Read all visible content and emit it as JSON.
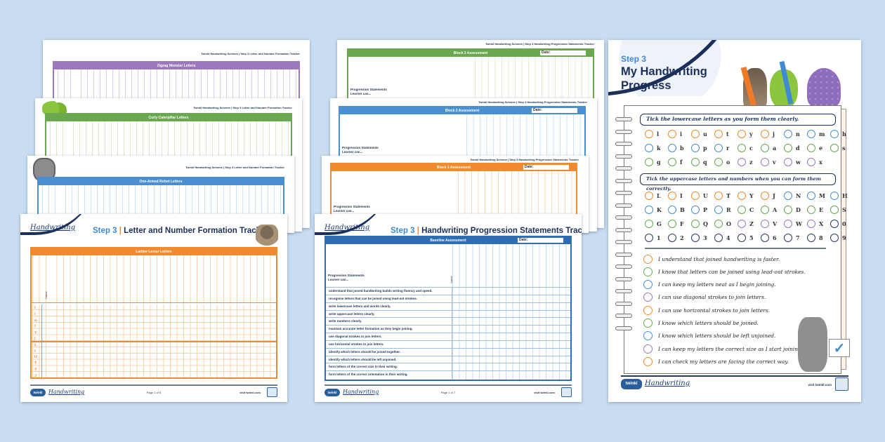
{
  "background_color": "#c9ddf2",
  "brand_colors": {
    "navy": "#1b2f5a",
    "blue": "#3f8ad0",
    "orange": "#ef8a2e",
    "green": "#6aa84f",
    "purple": "#9b78c0",
    "dark": "#2b3a5e"
  },
  "left_stack": {
    "running_header": "Twinkl Handwriting Scheme | Step 3 Letter and Number Formation Tracker",
    "sheets": [
      {
        "table_title": "Zigzag Monster Letters",
        "color": "#9b78c0"
      },
      {
        "table_title": "Curly Caterpillar Letters",
        "color": "#6aa84f"
      },
      {
        "table_title": "One-Armed Robot Letters",
        "color": "#4a8fd0"
      }
    ],
    "front": {
      "logo": "Handwriting",
      "title_step": "Step 3",
      "title_sep": "|",
      "title_text": "Letter and Number Formation Tracker",
      "table_title": "Ladder Lemur Letters",
      "name_label": "Name",
      "row_labels": [
        "l",
        "i",
        "u",
        "t",
        "y",
        "j",
        "L",
        "I",
        "U",
        "T",
        "Y",
        "J"
      ],
      "footer": {
        "brand": "twinkl",
        "product": "Handwriting",
        "page": "Page 1 of 5",
        "site": "visit twinkl.com"
      }
    }
  },
  "middle_stack": {
    "running_header": "Twinkl Handwriting Scheme | Step 3 Handwriting Progression Statements Tracker",
    "sheets": [
      {
        "table_title": "Block 3 Assessment",
        "date_label": "Date:",
        "color": "#6aa84f"
      },
      {
        "table_title": "Block 2 Assessment",
        "date_label": "Date:",
        "color": "#4a8fd0"
      },
      {
        "table_title": "Block 1 Assessment",
        "date_label": "Date:",
        "color": "#ef8a2e"
      }
    ],
    "statements_header": "Progression Statements",
    "learner_can": "Learner can...",
    "name_label": "Name",
    "front": {
      "logo": "Handwriting",
      "title_step": "Step 3",
      "title_sep": "|",
      "title_text": "Handwriting Progression Statements Tracker",
      "table_title": "Baseline Assessment",
      "date_label": "Date:",
      "rows": [
        "understand that joined handwriting builds writing fluency and speed.",
        "recognise letters that can be joined using lead-out strokes.",
        "write lowercase letters and words clearly.",
        "write uppercase letters clearly.",
        "write numbers clearly.",
        "maintain accurate letter formation as they begin joining.",
        "use diagonal strokes to join letters.",
        "use horizontal strokes to join letters.",
        "identify which letters should be joined together.",
        "identify which letters should be left unjoined.",
        "form letters of the correct size in their writing.",
        "form letters of the correct orientation in their writing."
      ],
      "footer": {
        "brand": "twinkl",
        "product": "Handwriting",
        "page": "Page 1 of 7",
        "site": "visit twinkl.com"
      }
    }
  },
  "right_sheet": {
    "step": "Step 3",
    "title_line1": "My Handwriting",
    "title_line2": "Progress",
    "lowercase_prompt": "Tick the lowercase letters as you form them clearly.",
    "lowercase_rows": [
      [
        {
          "ch": "l",
          "color": "#ef8a2e"
        },
        {
          "ch": "i",
          "color": "#ef8a2e"
        },
        {
          "ch": "u",
          "color": "#ef8a2e"
        },
        {
          "ch": "t",
          "color": "#ef8a2e"
        },
        {
          "ch": "y",
          "color": "#ef8a2e"
        },
        {
          "ch": "j",
          "color": "#ef8a2e"
        },
        {
          "ch": "n",
          "color": "#4a8fd0"
        },
        {
          "ch": "m",
          "color": "#4a8fd0"
        },
        {
          "ch": "h",
          "color": "#4a8fd0"
        }
      ],
      [
        {
          "ch": "k",
          "color": "#4a8fd0"
        },
        {
          "ch": "b",
          "color": "#4a8fd0"
        },
        {
          "ch": "p",
          "color": "#4a8fd0"
        },
        {
          "ch": "r",
          "color": "#4a8fd0"
        },
        {
          "ch": "c",
          "color": "#6aa84f"
        },
        {
          "ch": "a",
          "color": "#6aa84f"
        },
        {
          "ch": "d",
          "color": "#6aa84f"
        },
        {
          "ch": "e",
          "color": "#6aa84f"
        },
        {
          "ch": "s",
          "color": "#6aa84f"
        }
      ],
      [
        {
          "ch": "g",
          "color": "#6aa84f"
        },
        {
          "ch": "f",
          "color": "#6aa84f"
        },
        {
          "ch": "q",
          "color": "#6aa84f"
        },
        {
          "ch": "o",
          "color": "#6aa84f"
        },
        {
          "ch": "z",
          "color": "#9b78c0"
        },
        {
          "ch": "v",
          "color": "#9b78c0"
        },
        {
          "ch": "w",
          "color": "#9b78c0"
        },
        {
          "ch": "x",
          "color": "#9b78c0"
        }
      ]
    ],
    "uppercase_prompt": "Tick the uppercase letters and numbers when you can form them correctly.",
    "uppercase_rows": [
      [
        {
          "ch": "L",
          "color": "#ef8a2e"
        },
        {
          "ch": "I",
          "color": "#ef8a2e"
        },
        {
          "ch": "U",
          "color": "#ef8a2e"
        },
        {
          "ch": "T",
          "color": "#ef8a2e"
        },
        {
          "ch": "Y",
          "color": "#ef8a2e"
        },
        {
          "ch": "J",
          "color": "#ef8a2e"
        },
        {
          "ch": "N",
          "color": "#4a8fd0"
        },
        {
          "ch": "M",
          "color": "#4a8fd0"
        },
        {
          "ch": "H",
          "color": "#4a8fd0"
        }
      ],
      [
        {
          "ch": "K",
          "color": "#4a8fd0"
        },
        {
          "ch": "B",
          "color": "#4a8fd0"
        },
        {
          "ch": "P",
          "color": "#4a8fd0"
        },
        {
          "ch": "R",
          "color": "#4a8fd0"
        },
        {
          "ch": "C",
          "color": "#6aa84f"
        },
        {
          "ch": "A",
          "color": "#6aa84f"
        },
        {
          "ch": "D",
          "color": "#6aa84f"
        },
        {
          "ch": "E",
          "color": "#6aa84f"
        },
        {
          "ch": "S",
          "color": "#6aa84f"
        }
      ],
      [
        {
          "ch": "G",
          "color": "#6aa84f"
        },
        {
          "ch": "F",
          "color": "#6aa84f"
        },
        {
          "ch": "Q",
          "color": "#6aa84f"
        },
        {
          "ch": "O",
          "color": "#6aa84f"
        },
        {
          "ch": "Z",
          "color": "#9b78c0"
        },
        {
          "ch": "V",
          "color": "#9b78c0"
        },
        {
          "ch": "W",
          "color": "#9b78c0"
        },
        {
          "ch": "X",
          "color": "#9b78c0"
        },
        {
          "ch": "0",
          "color": "#2b3a5e"
        }
      ],
      [
        {
          "ch": "1",
          "color": "#2b3a5e"
        },
        {
          "ch": "2",
          "color": "#2b3a5e"
        },
        {
          "ch": "3",
          "color": "#2b3a5e"
        },
        {
          "ch": "4",
          "color": "#2b3a5e"
        },
        {
          "ch": "5",
          "color": "#2b3a5e"
        },
        {
          "ch": "6",
          "color": "#2b3a5e"
        },
        {
          "ch": "7",
          "color": "#2b3a5e"
        },
        {
          "ch": "8",
          "color": "#2b3a5e"
        },
        {
          "ch": "9",
          "color": "#2b3a5e"
        }
      ]
    ],
    "statements": [
      {
        "text": "I understand that joined handwriting is faster.",
        "color": "#ef8a2e"
      },
      {
        "text": "I know that letters can be joined using lead-out strokes.",
        "color": "#6aa84f"
      },
      {
        "text": "I can keep my letters neat as I begin joining.",
        "color": "#4a8fd0"
      },
      {
        "text": "I can use diagonal strokes to join letters.",
        "color": "#9b78c0"
      },
      {
        "text": "I can use horizontal strokes to join letters.",
        "color": "#ef8a2e"
      },
      {
        "text": "I know which letters should be joined.",
        "color": "#6aa84f"
      },
      {
        "text": "I know which letters should be left unjoined.",
        "color": "#4a8fd0"
      },
      {
        "text": "I can keep my letters the correct size as I start joining.",
        "color": "#9b78c0"
      },
      {
        "text": "I can check my letters are facing the correct way.",
        "color": "#ef8a2e"
      }
    ],
    "footer": {
      "brand": "twinkl",
      "product": "Handwriting",
      "site": "visit twinkl.com"
    }
  }
}
